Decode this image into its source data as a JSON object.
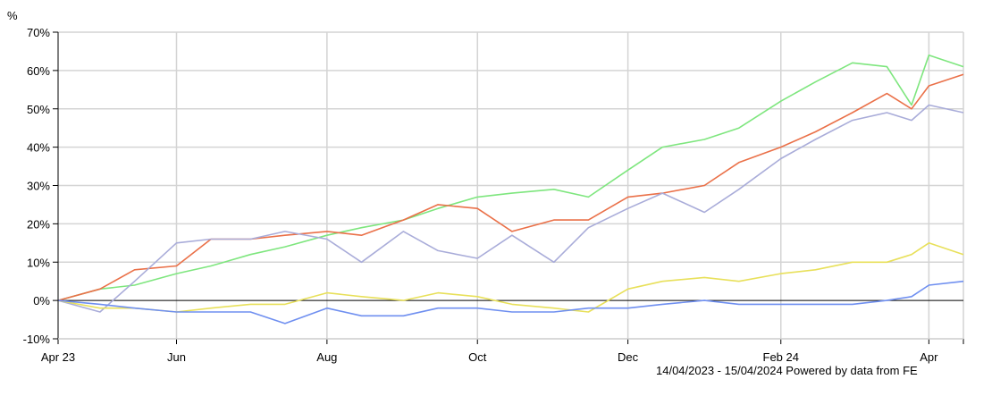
{
  "chart_data": {
    "type": "line",
    "ylabel": "%",
    "ylim": [
      -10,
      70
    ],
    "yticks": [
      "-10%",
      "0%",
      "10%",
      "20%",
      "30%",
      "40%",
      "50%",
      "60%",
      "70%"
    ],
    "ytick_values": [
      -10,
      0,
      10,
      20,
      30,
      40,
      50,
      60,
      70
    ],
    "xlim": [
      "2023-04-14",
      "2024-04-15"
    ],
    "xticks": [
      {
        "label": "Apr 23",
        "date": "2023-04-14"
      },
      {
        "label": "Jun",
        "date": "2023-06-01"
      },
      {
        "label": "Aug",
        "date": "2023-08-01"
      },
      {
        "label": "Oct",
        "date": "2023-10-01"
      },
      {
        "label": "Dec",
        "date": "2023-12-01"
      },
      {
        "label": "Feb 24",
        "date": "2024-02-01"
      },
      {
        "label": "Apr",
        "date": "2024-04-01"
      }
    ],
    "grid": true,
    "footer": "14/04/2023 - 15/04/2024 Powered by data from FE",
    "x": [
      "2023-04-14",
      "2023-05-01",
      "2023-05-15",
      "2023-06-01",
      "2023-06-15",
      "2023-07-01",
      "2023-07-15",
      "2023-08-01",
      "2023-08-15",
      "2023-09-01",
      "2023-09-15",
      "2023-10-01",
      "2023-10-15",
      "2023-11-01",
      "2023-11-15",
      "2023-12-01",
      "2023-12-15",
      "2024-01-01",
      "2024-01-15",
      "2024-02-01",
      "2024-02-15",
      "2024-03-01",
      "2024-03-15",
      "2024-03-25",
      "2024-04-01",
      "2024-04-15"
    ],
    "series": [
      {
        "color": "#7ee67e",
        "values": [
          0,
          3,
          4,
          7,
          9,
          12,
          14,
          17,
          19,
          21,
          24,
          27,
          28,
          29,
          27,
          34,
          40,
          42,
          45,
          52,
          57,
          62,
          61,
          51,
          64,
          61
        ]
      },
      {
        "color": "#ea7048",
        "values": [
          0,
          3,
          8,
          9,
          16,
          16,
          17,
          18,
          17,
          21,
          25,
          24,
          18,
          21,
          21,
          27,
          28,
          30,
          36,
          40,
          44,
          49,
          54,
          50,
          56,
          59
        ]
      },
      {
        "color": "#a9acd9",
        "values": [
          0,
          -3,
          5,
          15,
          16,
          16,
          18,
          16,
          10,
          18,
          13,
          11,
          17,
          10,
          19,
          24,
          28,
          23,
          29,
          37,
          42,
          47,
          49,
          47,
          51,
          49
        ]
      },
      {
        "color": "#e8e05a",
        "values": [
          0,
          -2,
          -2,
          -3,
          -2,
          -1,
          -1,
          2,
          1,
          0,
          2,
          1,
          -1,
          -2,
          -3,
          3,
          5,
          6,
          5,
          7,
          8,
          10,
          10,
          12,
          15,
          12
        ]
      },
      {
        "color": "#6f8ff0",
        "values": [
          0,
          -1,
          -2,
          -3,
          -3,
          -3,
          -6,
          -2,
          -4,
          -4,
          -2,
          -2,
          -3,
          -3,
          -2,
          -2,
          -1,
          0,
          -1,
          -1,
          -1,
          -1,
          0,
          1,
          4,
          5
        ]
      }
    ]
  }
}
